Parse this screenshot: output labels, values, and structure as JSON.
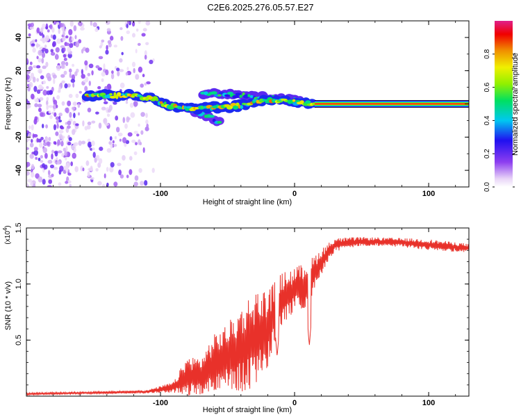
{
  "title": "C2E6.2025.276.05.57.E27",
  "chart_data": [
    {
      "type": "heatmap",
      "title": "C2E6.2025.276.05.57.E27",
      "xlabel": "Height of straight line (km)",
      "ylabel": "Frequency (Hz)",
      "xlim": [
        -200,
        130
      ],
      "ylim": [
        -50,
        50
      ],
      "x_ticks": [
        "-100",
        "0",
        "100"
      ],
      "y_ticks": [
        "40",
        "20",
        "0",
        "-20",
        "-40"
      ],
      "y_tick_values": [
        40,
        20,
        0,
        -20,
        -40
      ],
      "x_tick_values": [
        -100,
        0,
        100
      ],
      "colorbar": {
        "label": "Normalized spectral amplitude",
        "range": [
          0,
          1
        ],
        "ticks": [
          "0.0",
          "0.2",
          "0.4",
          "0.6",
          "0.8"
        ],
        "tick_values": [
          0,
          0.2,
          0.4,
          0.6,
          0.8
        ]
      },
      "ridge": [
        {
          "x": -155,
          "y": 5
        },
        {
          "x": -140,
          "y": 5
        },
        {
          "x": -120,
          "y": 5
        },
        {
          "x": -105,
          "y": 3
        },
        {
          "x": -95,
          "y": -1
        },
        {
          "x": -85,
          "y": -2
        },
        {
          "x": -75,
          "y": -3
        },
        {
          "x": -65,
          "y": -2
        },
        {
          "x": -55,
          "y": -2
        },
        {
          "x": -40,
          "y": -1
        },
        {
          "x": -30,
          "y": 1
        },
        {
          "x": -20,
          "y": 2
        },
        {
          "x": -10,
          "y": 2
        },
        {
          "x": 0,
          "y": 1
        },
        {
          "x": 10,
          "y": 0.5
        },
        {
          "x": 15,
          "y": 0
        },
        {
          "x": 130,
          "y": 0
        }
      ],
      "upper_branch": [
        {
          "x": -68,
          "y": 6
        },
        {
          "x": -55,
          "y": 6
        },
        {
          "x": -40,
          "y": 5
        },
        {
          "x": -25,
          "y": 4
        },
        {
          "x": -10,
          "y": 3
        },
        {
          "x": 5,
          "y": 2
        }
      ],
      "lower_branch": [
        {
          "x": -80,
          "y": -3
        },
        {
          "x": -70,
          "y": -6
        },
        {
          "x": -60,
          "y": -9
        },
        {
          "x": -55,
          "y": -12
        }
      ],
      "note": "steady line at 0 Hz from x=15 to 130 km at amplitude ~1.0; scattered low-amplitude noise at x<-110 km"
    },
    {
      "type": "line",
      "xlabel": "Height of straight line (km)",
      "ylabel": "SNR (10 * v/v)",
      "y_scale_label": "(x10",
      "y_scale_exp": "4",
      "y_scale_close": ")",
      "xlim": [
        -200,
        130
      ],
      "ylim": [
        0,
        1.5
      ],
      "x_ticks": [
        "-100",
        "0",
        "100"
      ],
      "x_tick_values": [
        -100,
        0,
        100
      ],
      "y_ticks": [
        "0.5",
        "1.0",
        "1.5"
      ],
      "y_tick_values": [
        0.5,
        1.0,
        1.5
      ],
      "series": [
        {
          "name": "SNR",
          "color": "#e8312a",
          "envelope": [
            {
              "x": -200,
              "mean": 0.02,
              "amp": 0.01
            },
            {
              "x": -150,
              "mean": 0.03,
              "amp": 0.01
            },
            {
              "x": -110,
              "mean": 0.04,
              "amp": 0.015
            },
            {
              "x": -100,
              "mean": 0.06,
              "amp": 0.03
            },
            {
              "x": -90,
              "mean": 0.08,
              "amp": 0.05
            },
            {
              "x": -80,
              "mean": 0.18,
              "amp": 0.18
            },
            {
              "x": -70,
              "mean": 0.18,
              "amp": 0.17
            },
            {
              "x": -60,
              "mean": 0.3,
              "amp": 0.25
            },
            {
              "x": -50,
              "mean": 0.35,
              "amp": 0.3
            },
            {
              "x": -40,
              "mean": 0.42,
              "amp": 0.38
            },
            {
              "x": -30,
              "mean": 0.5,
              "amp": 0.45
            },
            {
              "x": -20,
              "mean": 0.6,
              "amp": 0.35
            },
            {
              "x": -10,
              "mean": 0.85,
              "amp": 0.25
            },
            {
              "x": 0,
              "mean": 0.95,
              "amp": 0.2
            },
            {
              "x": 10,
              "mean": 1.0,
              "amp": 0.2
            },
            {
              "x": 20,
              "mean": 1.2,
              "amp": 0.12
            },
            {
              "x": 30,
              "mean": 1.35,
              "amp": 0.06
            },
            {
              "x": 50,
              "mean": 1.38,
              "amp": 0.04
            },
            {
              "x": 80,
              "mean": 1.37,
              "amp": 0.04
            },
            {
              "x": 100,
              "mean": 1.35,
              "amp": 0.05
            },
            {
              "x": 130,
              "mean": 1.32,
              "amp": 0.04
            }
          ],
          "dips": [
            {
              "x": 11,
              "value": 0.45
            },
            {
              "x": -13,
              "value": 0.35
            }
          ]
        }
      ]
    }
  ]
}
